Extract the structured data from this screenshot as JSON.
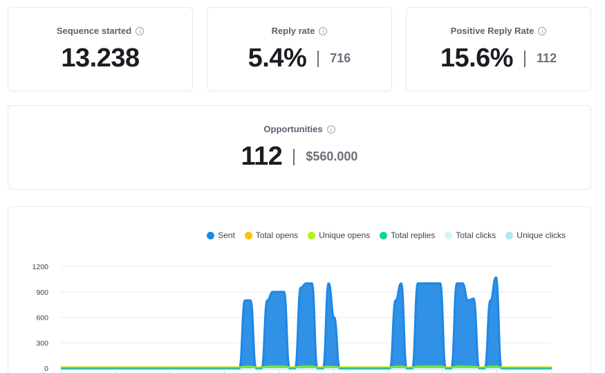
{
  "cards": {
    "sequence_started": {
      "title": "Sequence started",
      "value": "13.238"
    },
    "reply_rate": {
      "title": "Reply rate",
      "value": "5.4%",
      "sub": "716"
    },
    "positive_reply_rate": {
      "title": "Positive Reply Rate",
      "value": "15.6%",
      "sub": "112"
    },
    "opportunities": {
      "title": "Opportunities",
      "value": "112",
      "sub": "$560.000"
    }
  },
  "legend": [
    {
      "label": "Sent",
      "color": "#1e88e5"
    },
    {
      "label": "Total opens",
      "color": "#ffc107"
    },
    {
      "label": "Unique opens",
      "color": "#b7ef1f"
    },
    {
      "label": "Total replies",
      "color": "#12d68a"
    },
    {
      "label": "Total clicks",
      "color": "#d4f3fa"
    },
    {
      "label": "Unique clicks",
      "color": "#b0e6f2"
    }
  ],
  "chart_data": {
    "type": "area",
    "ylim": [
      0,
      1200
    ],
    "yticks": [
      0,
      300,
      600,
      900,
      1200
    ],
    "ytick_labels": [
      "0",
      "300",
      "600",
      "900",
      "1200"
    ],
    "series": [
      {
        "name": "Sent",
        "color": "#1e88e5",
        "values": [
          0,
          0,
          0,
          0,
          0,
          0,
          0,
          0,
          0,
          0,
          0,
          0,
          0,
          0,
          0,
          0,
          0,
          0,
          0,
          0,
          0,
          0,
          0,
          0,
          0,
          0,
          0,
          0,
          0,
          0,
          0,
          0,
          0,
          800,
          800,
          0,
          0,
          800,
          900,
          900,
          900,
          0,
          0,
          950,
          1000,
          1000,
          0,
          0,
          1000,
          600,
          0,
          0,
          0,
          0,
          0,
          0,
          0,
          0,
          0,
          0,
          800,
          1000,
          0,
          0,
          1000,
          1000,
          1000,
          1000,
          1000,
          0,
          0,
          1000,
          1000,
          800,
          820,
          0,
          0,
          800,
          1070,
          0,
          0,
          0,
          0,
          0,
          0,
          0,
          0,
          0,
          0
        ]
      },
      {
        "name": "Total replies",
        "color": "#12d68a",
        "values": [
          0,
          0,
          0,
          0,
          0,
          0,
          0,
          0,
          0,
          0,
          0,
          0,
          0,
          0,
          0,
          0,
          0,
          0,
          0,
          0,
          0,
          0,
          0,
          0,
          0,
          0,
          0,
          0,
          0,
          0,
          0,
          0,
          0,
          30,
          30,
          0,
          0,
          30,
          35,
          35,
          35,
          0,
          0,
          30,
          35,
          35,
          0,
          0,
          30,
          20,
          0,
          0,
          0,
          0,
          0,
          0,
          0,
          0,
          0,
          0,
          30,
          35,
          0,
          0,
          35,
          35,
          35,
          35,
          35,
          0,
          0,
          35,
          35,
          30,
          30,
          0,
          0,
          30,
          35,
          0,
          0,
          0,
          0,
          0,
          0,
          0,
          0,
          0,
          0
        ]
      },
      {
        "name": "Unique opens",
        "color": "#b7ef1f",
        "values": [
          15,
          15,
          15,
          15,
          15,
          15,
          15,
          15,
          15,
          15,
          15,
          15,
          15,
          15,
          15,
          15,
          15,
          15,
          15,
          15,
          15,
          15,
          15,
          15,
          15,
          15,
          15,
          15,
          15,
          15,
          15,
          15,
          15,
          15,
          15,
          15,
          15,
          15,
          15,
          15,
          15,
          15,
          15,
          15,
          15,
          15,
          15,
          15,
          15,
          15,
          15,
          15,
          15,
          15,
          15,
          15,
          15,
          15,
          15,
          15,
          15,
          15,
          15,
          15,
          15,
          15,
          15,
          15,
          15,
          15,
          15,
          15,
          15,
          15,
          15,
          15,
          15,
          15,
          15,
          15,
          15,
          15,
          15,
          15,
          15,
          15,
          15,
          15,
          15
        ]
      }
    ]
  }
}
